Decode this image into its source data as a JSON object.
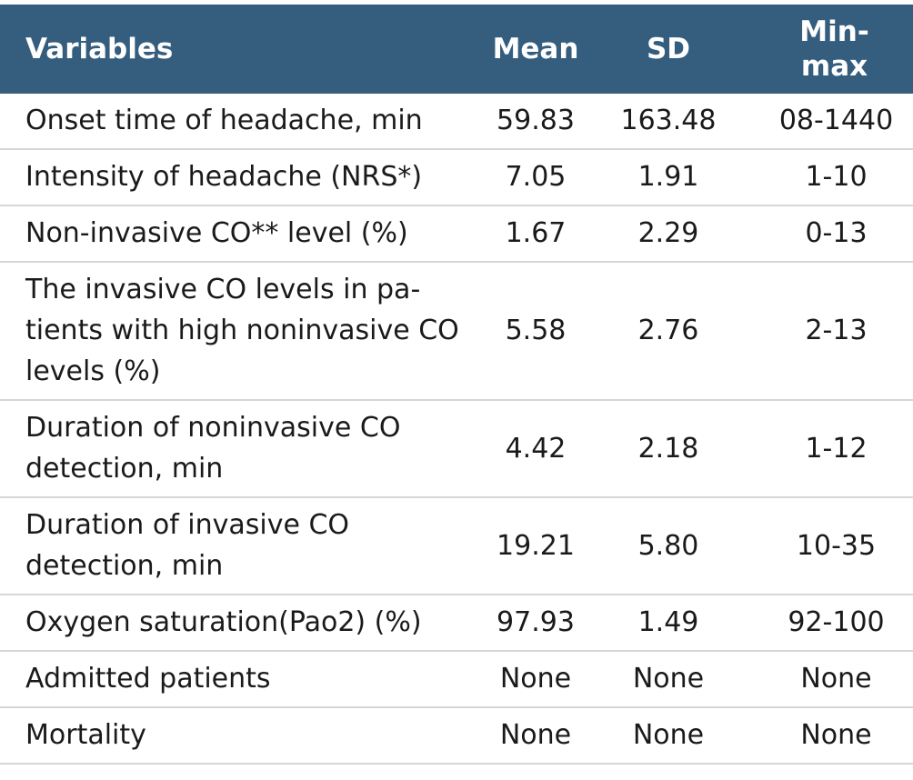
{
  "table": {
    "headers": {
      "variables": "Variables",
      "mean": "Mean",
      "sd": "SD",
      "minmax": "Min-max"
    },
    "rows": [
      {
        "variable": "Onset time of headache, min",
        "mean": "59.83",
        "sd": "163.48",
        "minmax": "08-1440"
      },
      {
        "variable": "Intensity of headache (NRS*)",
        "mean": "7.05",
        "sd": "1.91",
        "minmax": "1-10"
      },
      {
        "variable": "Non-invasive CO** level (%)",
        "mean": "1.67",
        "sd": "2.29",
        "minmax": "0-13"
      },
      {
        "variable": "The invasive CO levels in pa-tients with high noninvasive CO levels (%)",
        "mean": "5.58",
        "sd": "2.76",
        "minmax": "2-13"
      },
      {
        "variable": "Duration of noninvasive CO detection, min",
        "mean": "4.42",
        "sd": "2.18",
        "minmax": "1-12"
      },
      {
        "variable": "Duration of invasive CO detection, min",
        "mean": "19.21",
        "sd": "5.80",
        "minmax": "10-35"
      },
      {
        "variable": "Oxygen saturation(Pao2) (%)",
        "mean": "97.93",
        "sd": "1.49",
        "minmax": "92-100"
      },
      {
        "variable": "Admitted patients",
        "mean": "None",
        "sd": "None",
        "minmax": "None"
      },
      {
        "variable": "Mortality",
        "mean": "None",
        "sd": "None",
        "minmax": "None"
      }
    ]
  }
}
